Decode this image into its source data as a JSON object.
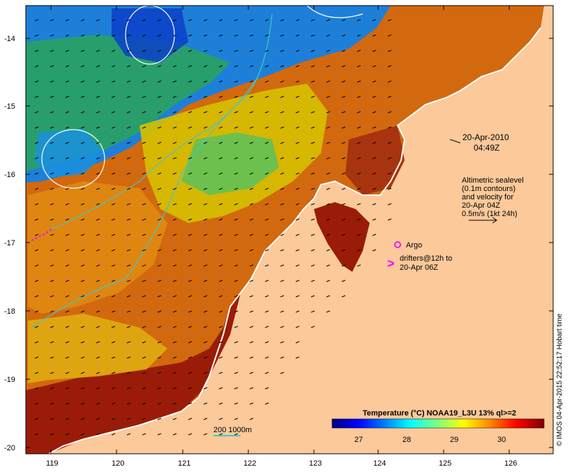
{
  "map": {
    "date": "20-Apr-2010",
    "time": "04:49Z",
    "altimetry_note": [
      "Altimetric sealevel",
      "(0.1m contours)",
      "and velocity for",
      "20-Apr 04Z",
      "0.5m/s (1kt 24h)"
    ],
    "argo_label": "Argo",
    "drifters_label": [
      "drifters@12h to",
      "20-Apr 06Z"
    ],
    "drifter_symbol": ">",
    "bathymetry_label": "200  1000m",
    "credit": "© IMOS 04-Apr-2015 22:52:17 Hobart time",
    "longitude_ticks": [
      "119",
      "120",
      "121",
      "122",
      "123",
      "124",
      "125",
      "126"
    ],
    "latitude_ticks": [
      "-14",
      "-15",
      "-16",
      "-17",
      "-18",
      "-19",
      "-20"
    ]
  },
  "colorbar": {
    "title": "Temperature (°C) NOAA19_L3U 13% ql>=2",
    "ticks": [
      "27",
      "28",
      "29",
      "30"
    ],
    "colors": [
      "#00007f",
      "#0000ff",
      "#007fff",
      "#00ffff",
      "#7fff7f",
      "#ffff00",
      "#ff7f00",
      "#ff0000",
      "#7f0000"
    ]
  },
  "colors": {
    "land": "#fbc99a",
    "coast": "#ffffff",
    "contour": "#ffffff",
    "isobath": "#40c8c8",
    "argo": "#e020e0",
    "drifter": "#ff00ff"
  }
}
